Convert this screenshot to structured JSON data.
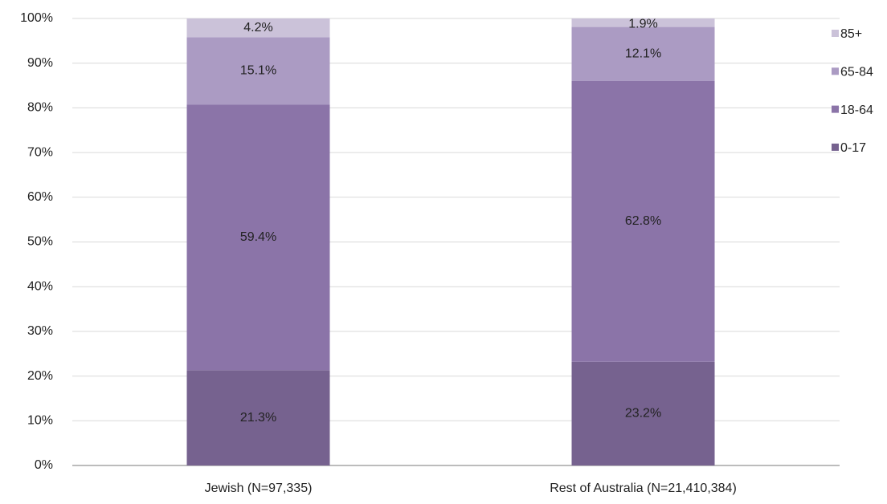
{
  "chart_data": {
    "type": "stacked_bar",
    "categories": [
      "Jewish (N=97,335)",
      "Rest of Australia (N=21,410,384)"
    ],
    "series": [
      {
        "name": "0-17",
        "color": "#76628f",
        "label_color": "#ffffff",
        "values": [
          21.3,
          23.2
        ],
        "value_labels": [
          "21.3%",
          "23.2%"
        ]
      },
      {
        "name": "18-64",
        "color": "#8b74a8",
        "label_color": "#ffffff",
        "values": [
          59.4,
          62.8
        ],
        "value_labels": [
          "59.4%",
          "62.8%"
        ]
      },
      {
        "name": "65-84",
        "color": "#ab9bc3",
        "label_color": "#222222",
        "values": [
          15.1,
          12.1
        ],
        "value_labels": [
          "15.1%",
          "12.1%"
        ]
      },
      {
        "name": "85+",
        "color": "#cbc2d9",
        "label_color": "#222222",
        "values": [
          4.2,
          1.9
        ],
        "value_labels": [
          "4.2%",
          "1.9%"
        ]
      }
    ],
    "ylim": [
      0,
      100
    ],
    "yticks": [
      {
        "value": 0,
        "label": "0%"
      },
      {
        "value": 10,
        "label": "10%"
      },
      {
        "value": 20,
        "label": "20%"
      },
      {
        "value": 30,
        "label": "30%"
      },
      {
        "value": 40,
        "label": "40%"
      },
      {
        "value": 50,
        "label": "50%"
      },
      {
        "value": 60,
        "label": "60%"
      },
      {
        "value": 70,
        "label": "70%"
      },
      {
        "value": 80,
        "label": "80%"
      },
      {
        "value": 90,
        "label": "90%"
      },
      {
        "value": 100,
        "label": "100%"
      }
    ],
    "grid": true,
    "legend": "right"
  }
}
